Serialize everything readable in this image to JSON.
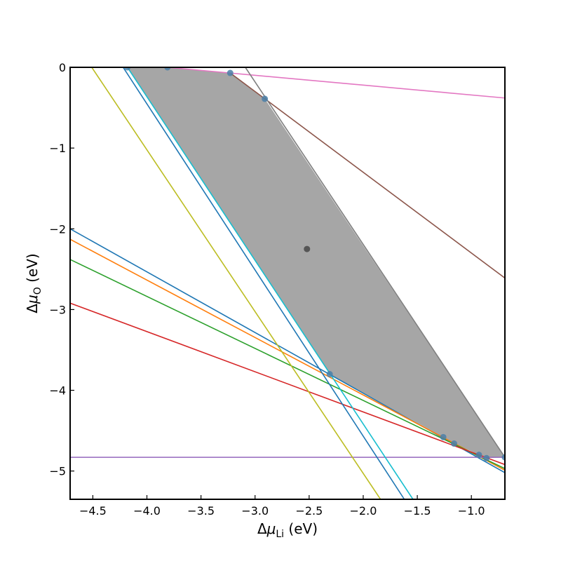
{
  "chart_data": {
    "type": "line",
    "title": "",
    "xlabel": {
      "prefix": "Δ",
      "var": "μ",
      "sub": "Li",
      "suffix": " (eV)"
    },
    "ylabel": {
      "prefix": "Δ",
      "var": "μ",
      "sub": "O",
      "suffix": " (eV)"
    },
    "xlim": [
      -4.71,
      -0.69
    ],
    "ylim": [
      -5.35,
      0
    ],
    "xticks": [
      -4.5,
      -4.0,
      -3.5,
      -3.0,
      -2.5,
      -2.0,
      -1.5,
      -1.0
    ],
    "xtick_labels": [
      "−4.5",
      "−4.0",
      "−3.5",
      "−3.0",
      "−2.5",
      "−2.0",
      "−1.5",
      "−1.0"
    ],
    "yticks": [
      0,
      -1,
      -2,
      -3,
      -4,
      -5
    ],
    "ytick_labels": [
      "0",
      "−1",
      "−2",
      "−3",
      "−4",
      "−5"
    ],
    "grid": false,
    "region": {
      "color": "#a6a6a6",
      "vertices": [
        [
          -4.18,
          0.0
        ],
        [
          -3.81,
          0.0
        ],
        [
          -3.23,
          -0.07
        ],
        [
          -2.91,
          -0.39
        ],
        [
          -0.69,
          -4.83
        ],
        [
          -0.86,
          -4.84
        ],
        [
          -0.93,
          -4.8
        ],
        [
          -1.16,
          -4.66
        ],
        [
          -1.26,
          -4.58
        ],
        [
          -2.31,
          -3.8
        ]
      ]
    },
    "series": [
      {
        "color": "#1f77b4",
        "points": [
          [
            -4.71,
            -2.0
          ],
          [
            -0.69,
            -5.02
          ]
        ]
      },
      {
        "color": "#ff7f0e",
        "points": [
          [
            -4.71,
            -2.13
          ],
          [
            -0.69,
            -4.99
          ]
        ]
      },
      {
        "color": "#2ca02c",
        "points": [
          [
            -4.71,
            -2.38
          ],
          [
            -0.69,
            -4.97
          ]
        ]
      },
      {
        "color": "#d62728",
        "points": [
          [
            -4.71,
            -2.92
          ],
          [
            -0.69,
            -4.92
          ]
        ]
      },
      {
        "color": "#9467bd",
        "points": [
          [
            -4.71,
            -4.83
          ],
          [
            -0.69,
            -4.83
          ]
        ]
      },
      {
        "color": "#8c564b",
        "points": [
          [
            -3.23,
            -0.07
          ],
          [
            -0.69,
            -2.61
          ]
        ]
      },
      {
        "color": "#e377c2",
        "points": [
          [
            -3.81,
            0.0
          ],
          [
            -0.69,
            -0.38
          ]
        ]
      },
      {
        "color": "#7f7f7f",
        "points": [
          [
            -3.09,
            0.0
          ],
          [
            -0.69,
            -4.83
          ]
        ]
      },
      {
        "color": "#bcbd22",
        "points": [
          [
            -4.51,
            0.0
          ],
          [
            -1.84,
            -5.35
          ]
        ]
      },
      {
        "color": "#1f77b4",
        "points": [
          [
            -4.22,
            0.0
          ],
          [
            -1.62,
            -5.35
          ]
        ]
      },
      {
        "color": "#17becf",
        "points": [
          [
            -4.18,
            0.0
          ],
          [
            -1.54,
            -5.35
          ]
        ]
      }
    ],
    "vertex_points": {
      "color": "#4a7fa8",
      "points": [
        [
          -4.18,
          0.0
        ],
        [
          -3.81,
          0.0
        ],
        [
          -3.23,
          -0.07
        ],
        [
          -2.91,
          -0.39
        ],
        [
          -2.31,
          -3.8
        ],
        [
          -1.26,
          -4.58
        ],
        [
          -1.16,
          -4.66
        ],
        [
          -0.93,
          -4.8
        ],
        [
          -0.86,
          -4.84
        ],
        [
          -0.69,
          -4.83
        ]
      ]
    },
    "center_point": {
      "color": "#555555",
      "point": [
        -2.52,
        -2.25
      ]
    }
  }
}
